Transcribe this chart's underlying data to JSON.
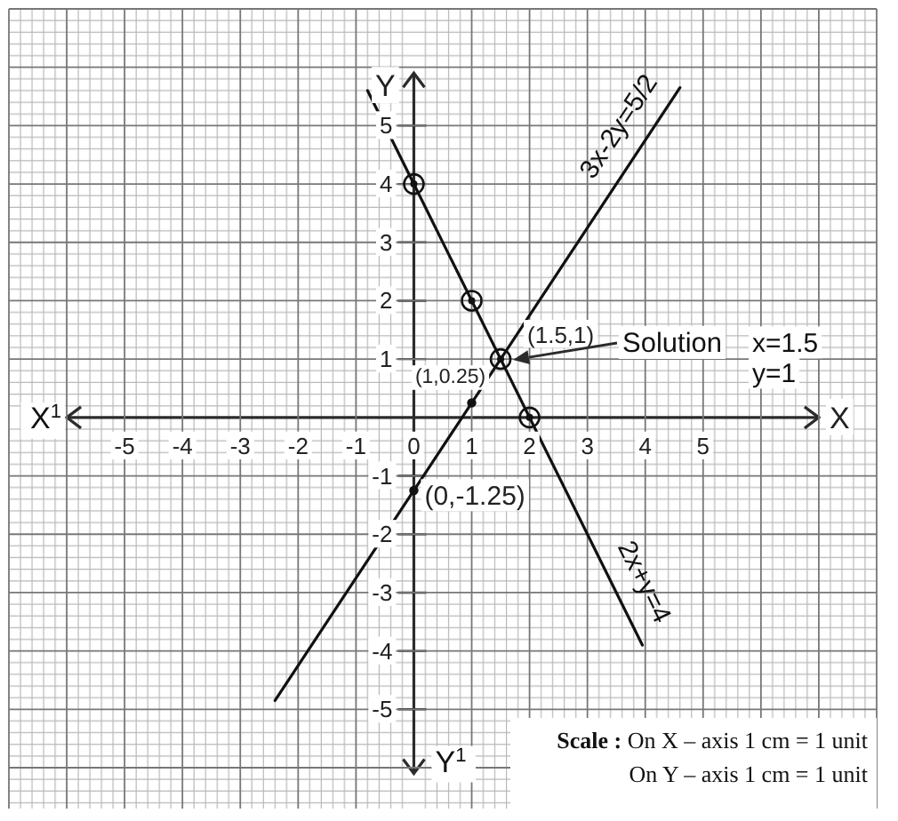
{
  "chart_data": {
    "type": "line",
    "xlabel": "X",
    "ylabel": "Y",
    "xlim": [
      -7,
      8
    ],
    "xticks": [
      {
        "value": -7,
        "label": null
      },
      {
        "value": -6,
        "label": null
      },
      -5,
      -4,
      -3,
      -2,
      -1,
      0,
      1,
      2,
      3,
      4,
      5,
      {
        "value": 6,
        "label": null
      },
      {
        "value": 7,
        "label": null
      },
      {
        "value": 8,
        "label": null
      }
    ],
    "ylim": [
      -6.7,
      7
    ],
    "yticks": [
      {
        "value": -6,
        "label": null
      },
      -5,
      -4,
      -3,
      -2,
      -1,
      {
        "value": 0,
        "label": null
      },
      1,
      2,
      3,
      4,
      5,
      {
        "value": 6,
        "label": null
      },
      {
        "value": 7,
        "label": null
      }
    ],
    "grid": true,
    "series": [
      {
        "name": "3x-2y=5/2",
        "color": "#111111",
        "x": [
          -2.4,
          4.6
        ],
        "values": [
          -4.85,
          5.65
        ]
      },
      {
        "name": "2x+y=4",
        "color": "#111111",
        "x": [
          -0.8,
          3.95
        ],
        "values": [
          5.6,
          -3.9
        ]
      },
      {
        "type": "scatter",
        "color": "#111111",
        "marker": "circle",
        "x": [
          0,
          1,
          1.5,
          2
        ],
        "values": [
          4,
          2,
          1,
          0
        ]
      },
      {
        "type": "scatter",
        "color": "#111111",
        "marker": "circle",
        "x": [
          0,
          1
        ],
        "values": [
          -1.25,
          0.25
        ]
      }
    ],
    "annotations": [
      {
        "text": "(1.5,1)",
        "x": 1.5,
        "y": 1
      },
      {
        "text": "(1,0.25)",
        "x": 1,
        "y": 0.25
      },
      {
        "text": "(0,-1.25)",
        "x": 0,
        "y": -1.25
      },
      "Solution",
      "x=1.5",
      "y=1",
      "X$^{1}$",
      "Y$^{1}$",
      "Scale : On X – axis 1 cm = 1 unit",
      "On Y – axis 1 cm = 1 unit"
    ]
  }
}
